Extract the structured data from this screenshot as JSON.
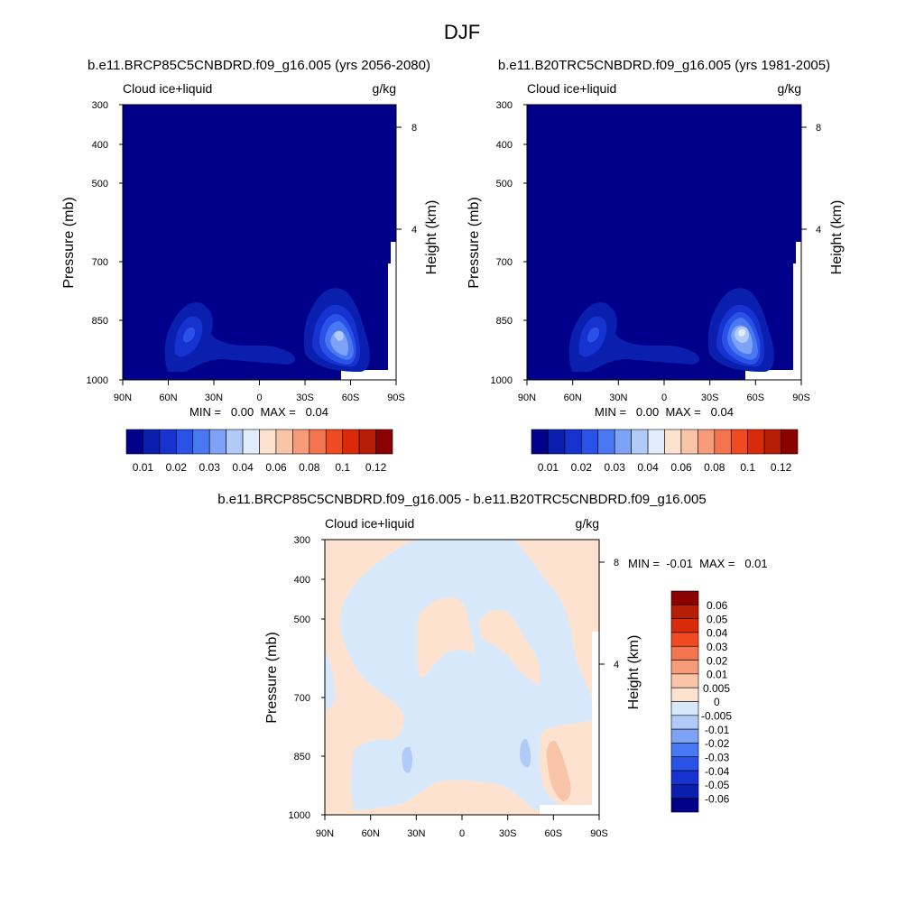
{
  "figure": {
    "title": "DJF"
  },
  "colors": {
    "background": "#00008b"
  },
  "chart_data": [
    {
      "type": "heatmap",
      "title": "b.e11.BRCP85C5CNBDRD.f09_g16.005 (yrs 2056-2080)",
      "variable": "Cloud ice+liquid",
      "units": "g/kg",
      "ylabel": "Pressure (mb)",
      "ylabel_right": "Height (km)",
      "x_ticks": [
        "90N",
        "60N",
        "30N",
        "0",
        "30S",
        "60S",
        "90S"
      ],
      "y_ticks": [
        "300",
        "400",
        "500",
        "700",
        "850",
        "1000"
      ],
      "y_ticks_right": [
        "8",
        "4"
      ],
      "stats": "MIN =   0.00  MAX =   0.04",
      "colorbar": {
        "orientation": "horizontal",
        "levels": [
          "0.01",
          "0.02",
          "0.03",
          "0.04",
          "0.06",
          "0.08",
          "0.1",
          "0.12"
        ],
        "colors": [
          "#00008b",
          "#0a1fae",
          "#1632cf",
          "#2a52e6",
          "#4878f2",
          "#7ea2f6",
          "#b1cbf8",
          "#e2edfb",
          "#fde3cf",
          "#fac4a8",
          "#f79c7a",
          "#f4744d",
          "#f04a22",
          "#d92b0a",
          "#b81e06",
          "#8b0000"
        ]
      }
    },
    {
      "type": "heatmap",
      "title": "b.e11.B20TRC5CNBDRD.f09_g16.005 (yrs 1981-2005)",
      "variable": "Cloud ice+liquid",
      "units": "g/kg",
      "ylabel": "Pressure (mb)",
      "ylabel_right": "Height (km)",
      "x_ticks": [
        "90N",
        "60N",
        "30N",
        "0",
        "30S",
        "60S",
        "90S"
      ],
      "y_ticks": [
        "300",
        "400",
        "500",
        "700",
        "850",
        "1000"
      ],
      "y_ticks_right": [
        "8",
        "4"
      ],
      "stats": "MIN =   0.00  MAX =   0.04",
      "colorbar": {
        "orientation": "horizontal",
        "levels": [
          "0.01",
          "0.02",
          "0.03",
          "0.04",
          "0.06",
          "0.08",
          "0.1",
          "0.12"
        ],
        "colors": [
          "#00008b",
          "#0a1fae",
          "#1632cf",
          "#2a52e6",
          "#4878f2",
          "#7ea2f6",
          "#b1cbf8",
          "#e2edfb",
          "#fde3cf",
          "#fac4a8",
          "#f79c7a",
          "#f4744d",
          "#f04a22",
          "#d92b0a",
          "#b81e06",
          "#8b0000"
        ]
      }
    },
    {
      "type": "heatmap",
      "title": "b.e11.BRCP85C5CNBDRD.f09_g16.005 - b.e11.B20TRC5CNBDRD.f09_g16.005",
      "variable": "Cloud ice+liquid",
      "units": "g/kg",
      "ylabel": "Pressure (mb)",
      "ylabel_right": "Height (km)",
      "x_ticks": [
        "90N",
        "60N",
        "30N",
        "0",
        "30S",
        "60S",
        "90S"
      ],
      "y_ticks": [
        "300",
        "400",
        "500",
        "700",
        "850",
        "1000"
      ],
      "y_ticks_right": [
        "8",
        "4"
      ],
      "stats": "MIN =  -0.01  MAX =   0.01",
      "colorbar": {
        "orientation": "vertical",
        "levels": [
          "0.06",
          "0.05",
          "0.04",
          "0.03",
          "0.02",
          "0.01",
          "0.005",
          "0",
          "-0.005",
          "-0.01",
          "-0.02",
          "-0.03",
          "-0.04",
          "-0.05",
          "-0.06"
        ],
        "colors": [
          "#8b0000",
          "#b81e06",
          "#d92b0a",
          "#f04a22",
          "#f4744d",
          "#f79c7a",
          "#fac4a8",
          "#fde3cf",
          "#d8e8fb",
          "#b1cbf8",
          "#7ea2f6",
          "#4878f2",
          "#2a52e6",
          "#1632cf",
          "#0a1fae",
          "#00008b"
        ]
      }
    }
  ]
}
